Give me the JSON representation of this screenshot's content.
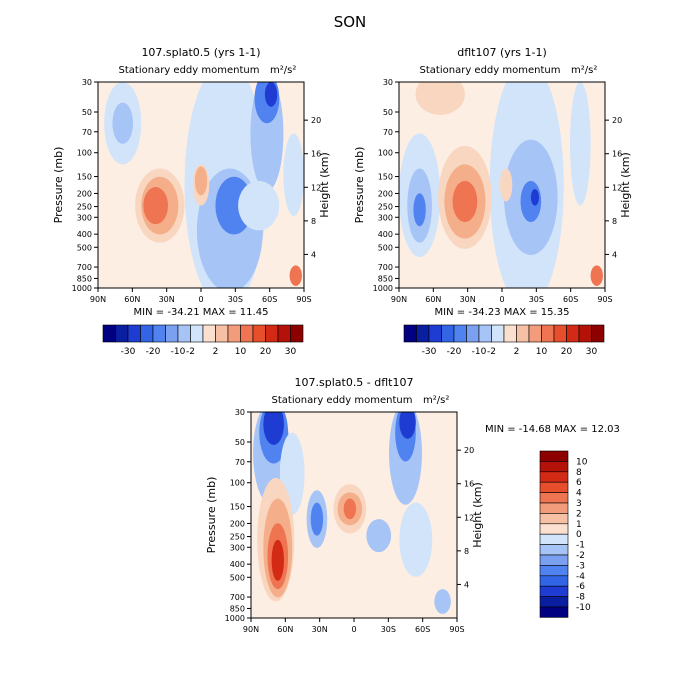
{
  "page_title": "SON",
  "chart_data": [
    {
      "type": "heatmap",
      "id": "p1",
      "title": "107.splat0.5 (yrs 1-1)",
      "subtitle": "Stationary eddy momentum",
      "units": "m²/s²",
      "xlabel": "",
      "ylabel": "Pressure (mb)",
      "ylabel_right": "Height (km)",
      "x_ticks": [
        "90N",
        "60N",
        "30N",
        "0",
        "30S",
        "60S",
        "90S"
      ],
      "y_ticks": [
        "30",
        "50",
        "70",
        "100",
        "150",
        "200",
        "250",
        "300",
        "400",
        "500",
        "700",
        "850",
        "1000"
      ],
      "y_ticks_right": [
        "4",
        "8",
        "12",
        "16",
        "20"
      ],
      "stats": "MIN = -34.21   MAX =  11.45",
      "min": -34.21,
      "max": 11.45
    },
    {
      "type": "heatmap",
      "id": "p2",
      "title": "dflt107 (yrs 1-1)",
      "subtitle": "Stationary eddy momentum",
      "units": "m²/s²",
      "xlabel": "",
      "ylabel": "Pressure (mb)",
      "ylabel_right": "Height (km)",
      "x_ticks": [
        "90N",
        "60N",
        "30N",
        "0",
        "30S",
        "60S",
        "90S"
      ],
      "y_ticks": [
        "30",
        "50",
        "70",
        "100",
        "150",
        "200",
        "250",
        "300",
        "400",
        "500",
        "700",
        "850",
        "1000"
      ],
      "y_ticks_right": [
        "4",
        "8",
        "12",
        "16",
        "20"
      ],
      "stats": "MIN = -34.23   MAX =  15.35",
      "min": -34.23,
      "max": 15.35
    },
    {
      "type": "heatmap",
      "id": "p3",
      "title": "107.splat0.5 - dflt107",
      "subtitle": "Stationary eddy momentum",
      "units": "m²/s²",
      "xlabel": "",
      "ylabel": "Pressure (mb)",
      "ylabel_right": "Height (km)",
      "x_ticks": [
        "90N",
        "60N",
        "30N",
        "0",
        "30S",
        "60S",
        "90S"
      ],
      "y_ticks": [
        "30",
        "50",
        "70",
        "100",
        "150",
        "200",
        "250",
        "300",
        "400",
        "500",
        "700",
        "850",
        "1000"
      ],
      "y_ticks_right": [
        "4",
        "8",
        "12",
        "16",
        "20"
      ],
      "stats": "MIN = -14.68   MAX =  12.03",
      "min": -14.68,
      "max": 12.03
    }
  ],
  "colorbar_main": {
    "labels": [
      "-30",
      "-20",
      "-10",
      "-2",
      "2",
      "10",
      "20",
      "30"
    ],
    "colors": [
      "#000080",
      "#0a1ea0",
      "#1e3cd2",
      "#3264e6",
      "#5082f0",
      "#7ca0f0",
      "#a6c4f6",
      "#d2e4fa",
      "#fbe0d0",
      "#f6c0a4",
      "#f29c7c",
      "#ee7452",
      "#e64e2c",
      "#d22a14",
      "#b41208",
      "#8c0000"
    ]
  },
  "colorbar_diff": {
    "labels": [
      "10",
      "8",
      "6",
      "4",
      "3",
      "2",
      "1",
      "0",
      "-1",
      "-2",
      "-3",
      "-4",
      "-6",
      "-8",
      "-10"
    ],
    "colors": [
      "#8c0000",
      "#b41208",
      "#d22a14",
      "#e64e2c",
      "#ee7452",
      "#f29c7c",
      "#f6c0a4",
      "#fbe0d0",
      "#d2e4fa",
      "#a6c4f6",
      "#7ca0f0",
      "#5082f0",
      "#3264e6",
      "#1e3cd2",
      "#0a1ea0",
      "#000080"
    ]
  },
  "field_colors": {
    "background": "#fdeee4",
    "neg_light": "#d2e4fa",
    "neg_mid": "#a6c4f6",
    "neg_strong": "#5082f0",
    "neg_deep": "#1e3cd2",
    "neg_darkest": "#0a1ea0",
    "pos_light": "#f9d6c0",
    "pos_mid": "#f4ae8a",
    "pos_strong": "#ee7452",
    "pos_deep": "#d22a14"
  }
}
